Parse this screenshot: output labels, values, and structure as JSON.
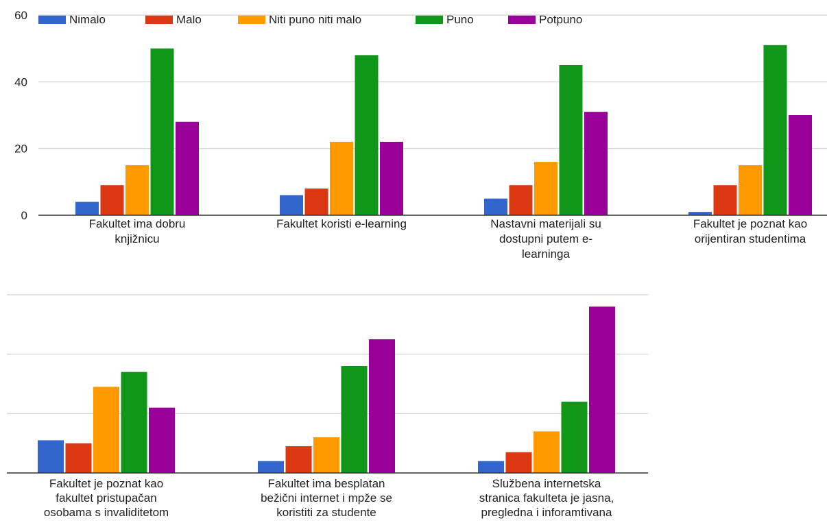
{
  "chart_data": {
    "type": "bar",
    "series": [
      {
        "name": "Nimalo",
        "color": "#3366cc"
      },
      {
        "name": "Malo",
        "color": "#dc3912"
      },
      {
        "name": "Niti puno niti malo",
        "color": "#ff9900"
      },
      {
        "name": "Puno",
        "color": "#109618"
      },
      {
        "name": "Potpuno",
        "color": "#990099"
      }
    ],
    "legend_position": "top",
    "panels": [
      {
        "ylim": [
          0,
          60
        ],
        "yticks": [
          "0",
          "20",
          "40",
          "60"
        ],
        "gridlines": [
          0,
          20,
          40,
          60
        ],
        "groups": [
          {
            "label": [
              "Fakultet ima dobru",
              "knjižnicu"
            ],
            "values": [
              4,
              9,
              15,
              50,
              28
            ]
          },
          {
            "label": [
              "Fakultet koristi e-learning"
            ],
            "values": [
              6,
              8,
              22,
              48,
              22
            ]
          },
          {
            "label": [
              "Nastavni materijali su",
              "dostupni putem e-",
              "learninga"
            ],
            "values": [
              5,
              9,
              16,
              45,
              31
            ]
          },
          {
            "label": [
              "Fakultet je poznat kao",
              "orijentiran studentima"
            ],
            "values": [
              1,
              9,
              15,
              51,
              30
            ]
          }
        ]
      },
      {
        "ylim": [
          0,
          60
        ],
        "yticks": [],
        "gridlines": [
          0,
          20,
          40,
          60
        ],
        "groups": [
          {
            "label": [
              "Fakultet je poznat kao",
              "fakultet pristupačan",
              "osobama s invaliditetom"
            ],
            "values": [
              11,
              10,
              29,
              34,
              22
            ]
          },
          {
            "label": [
              "Fakultet ima besplatan",
              "bežični internet i mpže se",
              "koristiti za studente"
            ],
            "values": [
              4,
              9,
              12,
              36,
              45
            ]
          },
          {
            "label": [
              "Službena internetska",
              "stranica fakulteta je jasna,",
              "pregledna i inforamtivana"
            ],
            "values": [
              4,
              7,
              14,
              24,
              56
            ]
          }
        ]
      }
    ]
  }
}
